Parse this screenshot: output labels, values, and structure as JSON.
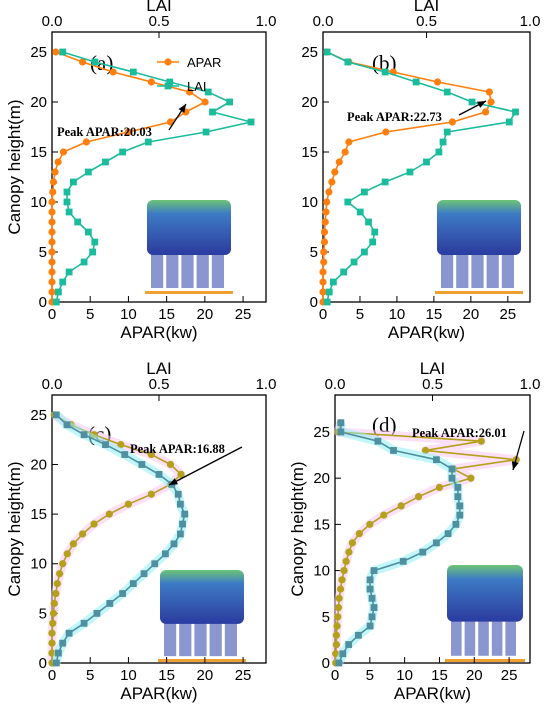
{
  "chart_data": [
    {
      "type": "line",
      "panel_label": "(a)",
      "xlabel": "APAR(kw)",
      "x2label": "LAI",
      "ylabel": "Canopy height(m)",
      "xlim": [
        0,
        28
      ],
      "x2lim": [
        0,
        1.0
      ],
      "ylim": [
        0,
        27
      ],
      "xticks": [
        0,
        5,
        10,
        15,
        20,
        25
      ],
      "x2ticks": [
        "0.0",
        "0.5",
        "1.0"
      ],
      "yticks": [
        0,
        5,
        10,
        15,
        20,
        25
      ],
      "legend": [
        "APAR",
        "LAI"
      ],
      "legend_position": "top-right",
      "annotation": "Peak APAR:20.03",
      "series": [
        {
          "name": "APAR",
          "color": "#ff7f0e",
          "marker": "circle",
          "y": [
            0,
            1,
            2,
            3,
            4,
            5,
            6,
            7,
            8,
            9,
            10,
            11,
            12,
            13,
            14,
            15,
            16,
            17,
            18,
            19,
            20,
            21,
            22,
            23,
            24,
            25
          ],
          "x": [
            0,
            0,
            0,
            0,
            0,
            0,
            0,
            0,
            0,
            0,
            0,
            0.1,
            0.2,
            0.4,
            0.8,
            1.5,
            4.5,
            10,
            15.5,
            17.5,
            20.03,
            18,
            13,
            8,
            4,
            0.5
          ]
        },
        {
          "name": "LAI",
          "color": "#1abc9c",
          "marker": "square",
          "y": [
            0,
            1,
            2,
            3,
            4,
            5,
            6,
            7,
            8,
            9,
            10,
            11,
            12,
            13,
            14,
            15,
            16,
            17,
            18,
            19,
            20,
            21,
            22,
            23,
            24,
            25
          ],
          "x": [
            0.02,
            0.03,
            0.05,
            0.08,
            0.15,
            0.19,
            0.2,
            0.17,
            0.12,
            0.08,
            0.07,
            0.07,
            0.1,
            0.17,
            0.25,
            0.33,
            0.45,
            0.72,
            0.93,
            0.75,
            0.83,
            0.73,
            0.55,
            0.38,
            0.2,
            0.05
          ]
        }
      ],
      "inset": "tree point cloud"
    },
    {
      "type": "line",
      "panel_label": "(b)",
      "xlabel": "APAR(kw)",
      "x2label": "LAI",
      "ylabel": "",
      "xlim": [
        0,
        28
      ],
      "x2lim": [
        0,
        1.0
      ],
      "ylim": [
        0,
        27
      ],
      "xticks": [
        0,
        5,
        10,
        15,
        20,
        25
      ],
      "x2ticks": [
        "0.0",
        "0.5",
        "1.0"
      ],
      "yticks": [
        0,
        5,
        10,
        15,
        20,
        25
      ],
      "annotation": "Peak APAR:22.73",
      "series": [
        {
          "name": "APAR",
          "color": "#ff7f0e",
          "marker": "circle",
          "y": [
            0,
            1,
            2,
            3,
            4,
            5,
            6,
            7,
            8,
            9,
            10,
            11,
            12,
            13,
            14,
            15,
            16,
            17,
            18,
            19,
            20,
            21,
            22,
            23,
            24,
            25
          ],
          "x": [
            0,
            0,
            0,
            0,
            0.1,
            0.1,
            0.2,
            0.2,
            0.3,
            0.4,
            0.5,
            0.8,
            1.2,
            1.6,
            2.2,
            3,
            3.5,
            8.5,
            17.5,
            22,
            22.73,
            22.5,
            15.5,
            9.5,
            3.5,
            0.5
          ]
        },
        {
          "name": "LAI",
          "color": "#1abc9c",
          "marker": "square",
          "y": [
            0,
            1,
            2,
            3,
            4,
            5,
            6,
            7,
            8,
            9,
            10,
            11,
            12,
            13,
            14,
            15,
            16,
            17,
            18,
            19,
            20,
            21,
            22,
            23,
            24,
            25
          ],
          "x": [
            0.02,
            0.03,
            0.05,
            0.1,
            0.15,
            0.2,
            0.24,
            0.25,
            0.22,
            0.18,
            0.12,
            0.2,
            0.3,
            0.42,
            0.5,
            0.56,
            0.58,
            0.6,
            0.9,
            0.93,
            0.72,
            0.6,
            0.45,
            0.3,
            0.12,
            0.02
          ]
        }
      ],
      "inset": "tree point cloud"
    },
    {
      "type": "line",
      "panel_label": "(c)",
      "xlabel": "APAR(kw)",
      "x2label": "LAI",
      "ylabel": "Canopy height(m)",
      "xlim": [
        0,
        28
      ],
      "x2lim": [
        0,
        1.0
      ],
      "ylim": [
        0,
        27
      ],
      "xticks": [
        0,
        5,
        10,
        15,
        20,
        25
      ],
      "x2ticks": [
        "0.0",
        "0.5",
        "1.0"
      ],
      "yticks": [
        0,
        5,
        10,
        15,
        20,
        25
      ],
      "annotation": "Peak APAR:16.88",
      "series": [
        {
          "name": "APAR",
          "color": "#b5a01c",
          "marker": "circle",
          "y": [
            0,
            1,
            2,
            3,
            4,
            5,
            6,
            7,
            8,
            9,
            10,
            11,
            12,
            13,
            14,
            15,
            16,
            17,
            18,
            19,
            20,
            21,
            22,
            23,
            24,
            25
          ],
          "x": [
            0,
            0,
            0,
            0,
            0.1,
            0.2,
            0.3,
            0.5,
            0.7,
            1,
            1.4,
            2,
            2.8,
            4,
            5.5,
            7.5,
            10,
            13,
            15.5,
            16.88,
            15.5,
            13,
            9,
            5.5,
            2.5,
            0.3
          ]
        },
        {
          "name": "LAI",
          "color": "#4f8fa0",
          "marker": "square",
          "y": [
            0,
            1,
            2,
            3,
            4,
            5,
            6,
            7,
            8,
            9,
            10,
            11,
            12,
            13,
            14,
            15,
            16,
            17,
            18,
            19,
            20,
            21,
            22,
            23,
            24,
            25
          ],
          "x": [
            0.02,
            0.03,
            0.05,
            0.08,
            0.15,
            0.21,
            0.27,
            0.33,
            0.38,
            0.43,
            0.48,
            0.53,
            0.57,
            0.6,
            0.61,
            0.62,
            0.6,
            0.59,
            0.56,
            0.5,
            0.42,
            0.34,
            0.25,
            0.15,
            0.07,
            0.02
          ]
        }
      ],
      "inset": "tree point cloud"
    },
    {
      "type": "line",
      "panel_label": "(d)",
      "xlabel": "APAR(kw)",
      "x2label": "LAI",
      "ylabel": "Canopy height(m)",
      "xlim": [
        0,
        28
      ],
      "x2lim": [
        0,
        1.0
      ],
      "ylim": [
        0,
        29
      ],
      "xticks": [
        0,
        5,
        10,
        15,
        20,
        25
      ],
      "x2ticks": [
        "0.0",
        "0.5",
        "1.0"
      ],
      "yticks": [
        0,
        5,
        10,
        15,
        20,
        25
      ],
      "annotation": "Peak APAR:26.01",
      "series": [
        {
          "name": "APAR",
          "color": "#b5a01c",
          "marker": "circle",
          "y": [
            0,
            1,
            2,
            3,
            4,
            5,
            6,
            7,
            8,
            9,
            10,
            11,
            12,
            13,
            14,
            15,
            16,
            17,
            18,
            19,
            20,
            21,
            22,
            23,
            24,
            25,
            26
          ],
          "x": [
            0.1,
            0.1,
            0.2,
            0.2,
            0.3,
            0.4,
            0.5,
            0.6,
            0.8,
            1,
            1.3,
            1.6,
            2,
            2.5,
            3.5,
            5,
            7,
            9.5,
            12,
            15,
            19.5,
            17,
            26.01,
            13,
            21,
            0.5,
            0.8
          ]
        },
        {
          "name": "LAI",
          "color": "#4f8fa0",
          "marker": "square",
          "y": [
            0,
            1,
            2,
            3,
            4,
            5,
            6,
            7,
            8,
            9,
            10,
            11,
            12,
            13,
            14,
            15,
            16,
            17,
            18,
            19,
            20,
            21,
            22,
            23,
            24,
            25,
            26
          ],
          "x": [
            0.02,
            0.04,
            0.07,
            0.12,
            0.18,
            0.19,
            0.2,
            0.19,
            0.18,
            0.18,
            0.2,
            0.35,
            0.45,
            0.52,
            0.58,
            0.62,
            0.64,
            0.64,
            0.63,
            0.63,
            0.6,
            0.6,
            0.52,
            0.3,
            0.22,
            0.03,
            0.03
          ]
        }
      ],
      "inset": "tree point cloud"
    }
  ]
}
